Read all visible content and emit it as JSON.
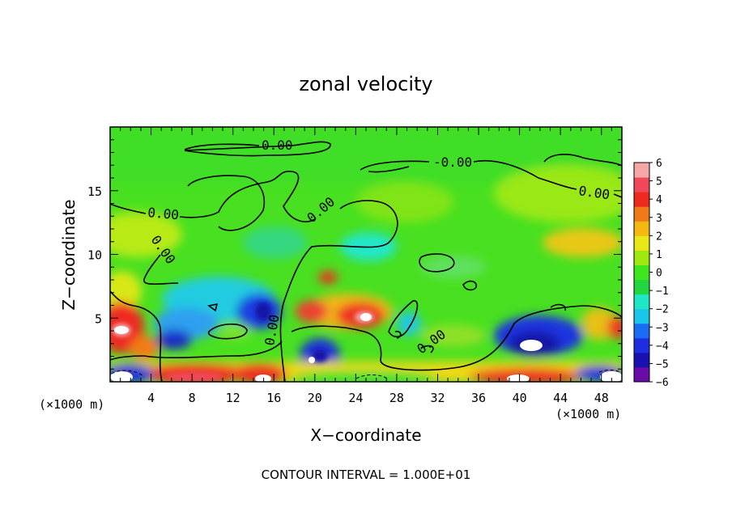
{
  "chart_data": {
    "type": "heatmap",
    "title": "zonal velocity",
    "xlabel": "X−coordinate",
    "ylabel": "Z−coordinate",
    "x_unit_left": "(×1000 m)",
    "x_unit_right": "(×1000 m)",
    "xlim": [
      0,
      50
    ],
    "ylim": [
      0,
      20
    ],
    "x_ticks": [
      "4",
      "8",
      "12",
      "16",
      "20",
      "24",
      "28",
      "32",
      "36",
      "40",
      "44",
      "48"
    ],
    "y_ticks": [
      "5",
      "10",
      "15"
    ],
    "colorbar": {
      "range": [
        -6,
        6
      ],
      "ticks": [
        "6",
        "5",
        "4",
        "3",
        "2",
        "1",
        "0",
        "−1",
        "−2",
        "−3",
        "−4",
        "−5",
        "−6"
      ],
      "colors": [
        "#6a0aa8",
        "#1a10b0",
        "#1c2ee0",
        "#1a6cf2",
        "#18c6ec",
        "#20e6c8",
        "#22d640",
        "#3ee620",
        "#9ee810",
        "#e8e818",
        "#f4b810",
        "#f07a18",
        "#ec2a20",
        "#f04858",
        "#f6a6a6"
      ]
    },
    "contour_labels": [
      "0.00",
      "-0.00",
      "0.00",
      "0.00",
      "0.00",
      "0.00",
      "0.00"
    ],
    "footer": "CONTOUR INTERVAL = 1.000E+01"
  }
}
